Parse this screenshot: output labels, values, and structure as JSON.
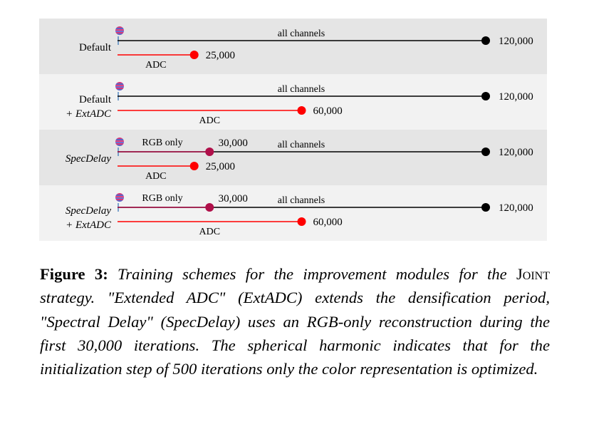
{
  "colors": {
    "panel_dark": "#e5e5e5",
    "panel_light": "#f2f2f2",
    "all_channels_line": "#000000",
    "adc_line": "#ff0000",
    "rgb_only_line": "#b0104a",
    "start_tick": "#2d6fb5"
  },
  "icons": {
    "start": "spherical-harmonic-icon"
  },
  "rows": [
    {
      "label_lines": [
        "Default"
      ],
      "italic_lines": [
        false
      ],
      "all_channels_label": "all channels",
      "all_channels_end": "120,000",
      "all_channels_end_value": 120000,
      "adc_label": "ADC",
      "adc_end": "25,000",
      "adc_end_value": 25000,
      "rgb_label": "",
      "rgb_end": "",
      "rgb_end_value": null
    },
    {
      "label_lines": [
        "Default",
        "+ ExtADC"
      ],
      "italic_lines": [
        false,
        true
      ],
      "all_channels_label": "all channels",
      "all_channels_end": "120,000",
      "all_channels_end_value": 120000,
      "adc_label": "ADC",
      "adc_end": "60,000",
      "adc_end_value": 60000,
      "rgb_label": "",
      "rgb_end": "",
      "rgb_end_value": null
    },
    {
      "label_lines": [
        "SpecDelay"
      ],
      "italic_lines": [
        true
      ],
      "all_channels_label": "all channels",
      "all_channels_end": "120,000",
      "all_channels_end_value": 120000,
      "adc_label": "ADC",
      "adc_end": "25,000",
      "adc_end_value": 25000,
      "rgb_label": "RGB only",
      "rgb_end": "30,000",
      "rgb_end_value": 30000
    },
    {
      "label_lines": [
        "SpecDelay",
        "+ ExtADC"
      ],
      "italic_lines": [
        true,
        true
      ],
      "all_channels_label": "all channels",
      "all_channels_end": "120,000",
      "all_channels_end_value": 120000,
      "adc_label": "ADC",
      "adc_end": "60,000",
      "adc_end_value": 60000,
      "rgb_label": "RGB only",
      "rgb_end": "30,000",
      "rgb_end_value": 30000
    }
  ],
  "caption": {
    "label": "Figure 3:",
    "text_1": " Training schemes for the improvement modules for the ",
    "smallcaps": "Joint",
    "text_2": " strategy. \"Extended ADC\" (ExtADC) extends the densification period, \"Spectral Delay\" (SpecDelay) uses an RGB-only reconstruction during the first 30,000 iterations. The spherical harmonic indicates that for the initialization step of 500 iterations only the color representation is optimized."
  }
}
